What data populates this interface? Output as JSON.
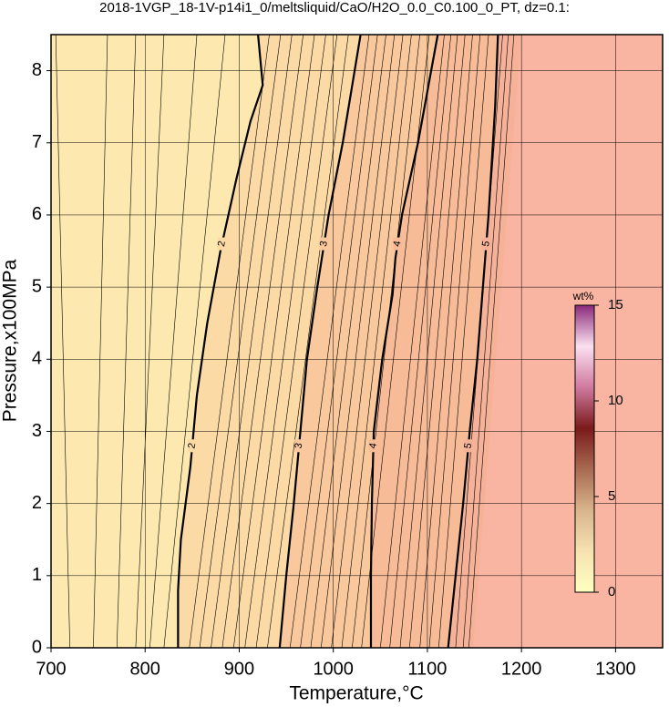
{
  "chart_data": {
    "type": "contour",
    "title": "2018-1VGP_18-1V-p14i1_0/meltsliquid/CaO/H2O_0.0_C0.100_0_PT, dz=0.1:",
    "xlabel": "Temperature,°C",
    "ylabel": "Pressure,x100MPa",
    "xlim": [
      700,
      1350
    ],
    "ylim": [
      0,
      8.5
    ],
    "xticks": [
      700,
      800,
      900,
      1000,
      1100,
      1200,
      1300
    ],
    "yticks": [
      0,
      1,
      2,
      3,
      4,
      5,
      6,
      7,
      8
    ],
    "grid": true,
    "band_colors": [
      "#fde9b0",
      "#fbdaa6",
      "#f9c99d",
      "#f7bb98",
      "#f6b299",
      "#f9b5a1"
    ],
    "contours": [
      {
        "level": 2,
        "x": [
          835,
          835,
          838,
          848,
          855,
          866,
          880,
          897,
          912,
          925,
          920
        ],
        "y": [
          0,
          0.8,
          1.5,
          2.5,
          3.5,
          4.5,
          5.5,
          6.5,
          7.3,
          7.8,
          8.5
        ]
      },
      {
        "level": 3,
        "x": [
          943,
          950,
          958,
          965,
          972,
          983,
          995,
          1010,
          1029
        ],
        "y": [
          0,
          1,
          2,
          3,
          4,
          5,
          6,
          7,
          8.5
        ]
      },
      {
        "level": 4,
        "x": [
          1040,
          1040,
          1041,
          1043,
          1052,
          1063,
          1066,
          1073,
          1090,
          1111
        ],
        "y": [
          0,
          1,
          2,
          3,
          4,
          4.9,
          5.4,
          6,
          7,
          8.5
        ]
      },
      {
        "level": 5,
        "x": [
          1122,
          1130,
          1138,
          1145,
          1153,
          1159,
          1165,
          1172,
          1175
        ],
        "y": [
          0,
          1,
          2,
          3,
          4,
          5,
          6,
          7.5,
          8.5
        ]
      }
    ],
    "saturation_edge": {
      "x": [
        1149,
        1200
      ],
      "y": [
        0,
        8.5
      ]
    },
    "minor_y": [
      0,
      8.5
    ],
    "minor_contours": [
      {
        "x": [
          720,
          705
        ]
      },
      {
        "x": [
          745,
          760
        ]
      },
      {
        "x": [
          770,
          790
        ]
      },
      {
        "x": [
          790,
          820
        ]
      },
      {
        "x": [
          805,
          855
        ]
      },
      {
        "x": [
          820,
          885
        ]
      },
      {
        "x": [
          847,
          932
        ]
      },
      {
        "x": [
          858,
          944
        ]
      },
      {
        "x": [
          870,
          956
        ]
      },
      {
        "x": [
          882,
          968
        ]
      },
      {
        "x": [
          894,
          980
        ]
      },
      {
        "x": [
          906,
          992
        ]
      },
      {
        "x": [
          918,
          1004
        ]
      },
      {
        "x": [
          930,
          1016
        ]
      },
      {
        "x": [
          954,
          1038
        ]
      },
      {
        "x": [
          965,
          1047
        ]
      },
      {
        "x": [
          976,
          1056
        ]
      },
      {
        "x": [
          987,
          1065
        ]
      },
      {
        "x": [
          998,
          1074
        ]
      },
      {
        "x": [
          1009,
          1083
        ]
      },
      {
        "x": [
          1020,
          1092
        ]
      },
      {
        "x": [
          1030,
          1102
        ]
      },
      {
        "x": [
          1050,
          1118
        ]
      },
      {
        "x": [
          1060,
          1125
        ]
      },
      {
        "x": [
          1071,
          1132
        ]
      },
      {
        "x": [
          1081,
          1140
        ]
      },
      {
        "x": [
          1092,
          1148
        ]
      },
      {
        "x": [
          1102,
          1156
        ]
      },
      {
        "x": [
          1112,
          1165
        ]
      },
      {
        "x": [
          1130,
          1180
        ]
      },
      {
        "x": [
          1138,
          1186
        ]
      },
      {
        "x": [
          1144,
          1192
        ]
      }
    ],
    "colorbar": {
      "label": "wt%",
      "clim": [
        0,
        15
      ],
      "ticks": [
        0,
        5,
        10,
        15
      ],
      "colors": [
        "#ffffc0",
        "#f6e2b0",
        "#d9b48c",
        "#a86a52",
        "#7a1a1a",
        "#d07aa0",
        "#fbe0f0",
        "#8a2a7a"
      ]
    }
  }
}
